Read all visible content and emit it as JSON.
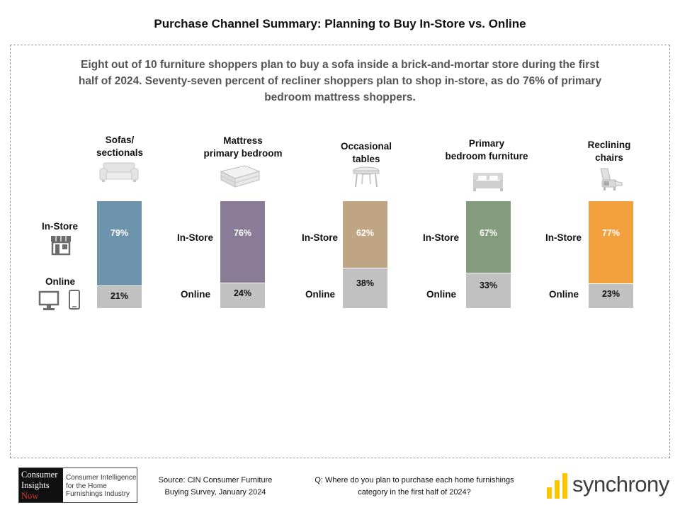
{
  "title": "Purchase Channel Summary: Planning to Buy In-Store vs. Online",
  "summary": "Eight out of 10 furniture shoppers plan to buy a sofa inside a brick-and-mortar store during the first half of 2024. Seventy-seven percent of recliner shoppers plan to shop in-store, as do 76% of primary bedroom mattress shoppers.",
  "labels": {
    "instore": "In-Store",
    "online": "Online"
  },
  "chart_data": {
    "type": "bar",
    "stacked": true,
    "categories": [
      "Sofas/ sectionals",
      "Mattress primary bedroom",
      "Occasional tables",
      "Primary bedroom furniture",
      "Reclining chairs"
    ],
    "category_lines": [
      [
        "Sofas/",
        "sectionals"
      ],
      [
        "Mattress",
        "primary bedroom"
      ],
      [
        "Occasional",
        "tables"
      ],
      [
        "Primary",
        "bedroom furniture"
      ],
      [
        "Reclining",
        "chairs"
      ]
    ],
    "series": [
      {
        "name": "In-Store",
        "values": [
          79,
          76,
          62,
          67,
          77
        ]
      },
      {
        "name": "Online",
        "values": [
          21,
          24,
          38,
          33,
          23
        ]
      }
    ],
    "value_labels": {
      "instore": [
        "79%",
        "76%",
        "62%",
        "67%",
        "77%"
      ],
      "online": [
        "21%",
        "24%",
        "38%",
        "33%",
        "23%"
      ]
    },
    "ylim": [
      0,
      100
    ],
    "colors": {
      "instore": [
        "#6e93ad",
        "#8a7c97",
        "#bfa583",
        "#829c7c",
        "#f29f3e"
      ],
      "online": "#c1c1c1"
    },
    "icons": [
      "sofa-icon",
      "mattress-icon",
      "table-icon",
      "bed-icon",
      "recliner-icon"
    ]
  },
  "channel_icons": [
    "storefront-icon",
    "desktop-icon",
    "mobile-phone-icon"
  ],
  "footer": {
    "logo_lines": [
      "Consumer",
      "Insights",
      "Now"
    ],
    "logo_tagline": "Consumer Intelligence for the Home Furnishings Industry",
    "source": "Source: CIN Consumer Furniture Buying Survey, January 2024",
    "question": "Q: Where do you plan to purchase each home furnishings category in the first half of 2024?",
    "brand": "synchrony",
    "brand_color": "#fbc600"
  }
}
